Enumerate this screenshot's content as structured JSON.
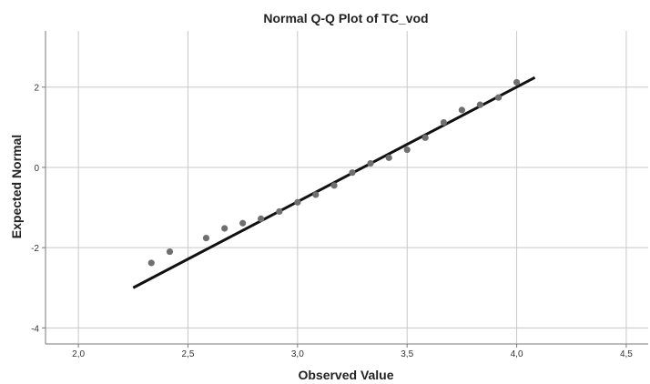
{
  "chart_data": {
    "type": "scatter",
    "title": "Normal Q-Q Plot of TC_vod",
    "xlabel": "Observed Value",
    "ylabel": "Expected Normal",
    "xlim": [
      1.85,
      4.6
    ],
    "ylim": [
      -4.4,
      3.4
    ],
    "x_ticks": [
      2.0,
      2.5,
      3.0,
      3.5,
      4.0,
      4.5
    ],
    "x_tick_labels": [
      "2,0",
      "2,5",
      "3,0",
      "3,5",
      "4,0",
      "4,5"
    ],
    "y_ticks": [
      -4,
      -2,
      0,
      2
    ],
    "y_tick_labels": [
      "-4",
      "-2",
      "0",
      "2"
    ],
    "grid": true,
    "points": [
      {
        "x": 2.333,
        "y": -2.38
      },
      {
        "x": 2.417,
        "y": -2.1
      },
      {
        "x": 2.583,
        "y": -1.76
      },
      {
        "x": 2.667,
        "y": -1.52
      },
      {
        "x": 2.75,
        "y": -1.39
      },
      {
        "x": 2.833,
        "y": -1.28
      },
      {
        "x": 2.917,
        "y": -1.1
      },
      {
        "x": 3.0,
        "y": -0.87
      },
      {
        "x": 3.083,
        "y": -0.68
      },
      {
        "x": 3.167,
        "y": -0.45
      },
      {
        "x": 3.25,
        "y": -0.13
      },
      {
        "x": 3.333,
        "y": 0.1
      },
      {
        "x": 3.417,
        "y": 0.24
      },
      {
        "x": 3.5,
        "y": 0.44
      },
      {
        "x": 3.583,
        "y": 0.74
      },
      {
        "x": 3.667,
        "y": 1.12
      },
      {
        "x": 3.75,
        "y": 1.43
      },
      {
        "x": 3.833,
        "y": 1.56
      },
      {
        "x": 3.917,
        "y": 1.74
      },
      {
        "x": 4.0,
        "y": 2.12
      }
    ],
    "reference_line": {
      "x1": 2.25,
      "y1": -3.0,
      "x2": 4.083,
      "y2": 2.24
    },
    "colors": {
      "points": "#6f6f6f",
      "reference_line": "#111111",
      "grid": "#c8c8c8",
      "axis": "#7a7a7a"
    }
  }
}
